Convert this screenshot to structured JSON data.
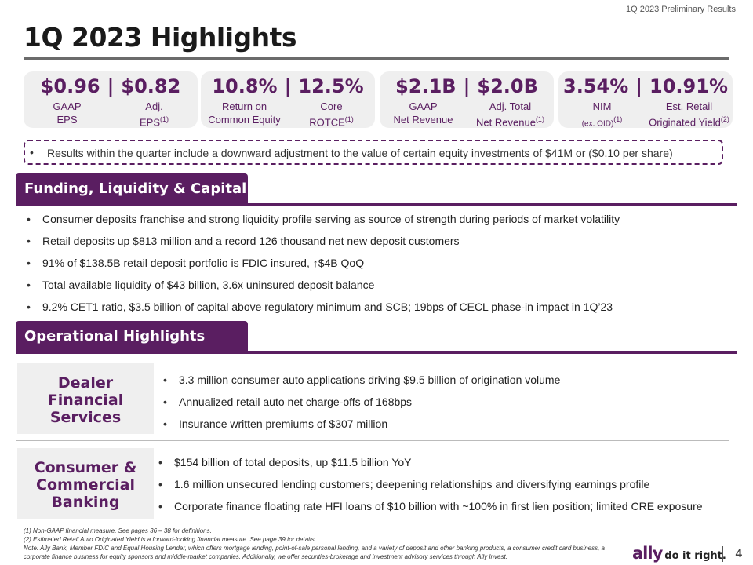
{
  "header": {
    "top_right": "1Q 2023 Preliminary Results",
    "title": "1Q 2023 Highlights"
  },
  "metrics": [
    {
      "v1": "$0.96",
      "v2": "$0.82",
      "l1a": "GAAP",
      "l1b": "EPS",
      "l2a": "Adj.",
      "l2b": "EPS",
      "l2sup": "(1)"
    },
    {
      "v1": "10.8%",
      "v2": "12.5%",
      "l1a": "Return on",
      "l1b": "Common Equity",
      "l2a": "Core",
      "l2b": "ROTCE",
      "l2sup": "(1)"
    },
    {
      "v1": "$2.1B",
      "v2": "$2.0B",
      "l1a": "GAAP",
      "l1b": "Net Revenue",
      "l2a": "Adj. Total",
      "l2b": "Net Revenue",
      "l2sup": "(1)"
    },
    {
      "v1": "3.54%",
      "v2": "10.91%",
      "l1a": "NIM",
      "l1b": "(ex. OID)",
      "l1sup": "(1)",
      "l2a": "Est. Retail",
      "l2b": "Originated Yield",
      "l2sup": "(2)"
    }
  ],
  "separator": "|",
  "note": "Results within the quarter include a downward adjustment to the value of certain equity investments of $41M or ($0.10 per share)",
  "funding": {
    "heading": "Funding, Liquidity & Capital",
    "bullets": [
      "Consumer deposits franchise and strong liquidity profile serving as source of strength during periods of market volatility",
      "Retail deposits up $813 million and a record 126 thousand net new deposit customers",
      "91% of $138.5B retail deposit portfolio is FDIC insured, ↑$4B QoQ",
      "Total available liquidity of $43 billion, 3.6x uninsured deposit balance",
      "9.2% CET1 ratio, $3.5 billion of capital above regulatory minimum and SCB; 19bps of CECL phase-in impact in 1Q’23"
    ]
  },
  "operational": {
    "heading": "Operational Highlights",
    "groups": [
      {
        "label_lines": [
          "Dealer",
          "Financial",
          "Services"
        ],
        "bullets": [
          "3.3 million consumer auto applications driving $9.5 billion of origination volume",
          "Annualized retail auto net charge-offs of 168bps",
          "Insurance written premiums of $307 million"
        ]
      },
      {
        "label_lines": [
          "Consumer &",
          "Commercial",
          "Banking"
        ],
        "bullets": [
          "$154 billion of total deposits, up $11.5 billion YoY",
          "1.6 million unsecured lending customers; deepening relationships and diversifying earnings profile",
          "Corporate finance floating rate HFI loans of $10 billion with ~100% in first lien position; limited CRE exposure"
        ]
      }
    ]
  },
  "footnotes": [
    "(1) Non-GAAP financial measure. See pages 36 – 38  for definitions.",
    "(2) Estimated Retail Auto Originated Yield is a forward-looking financial measure. See page 39 for details.",
    "Note: Ally Bank, Member FDIC and Equal Housing Lender, which offers mortgage lending, point-of-sale personal lending, and a variety of deposit and other banking products, a consumer credit card business, a",
    "corporate finance business for equity sponsors and middle-market companies. Additionally, we offer securities-brokerage and investment advisory services through Ally Invest."
  ],
  "logo": {
    "word": "ally",
    "tagline": "do it right."
  },
  "page_number": "4",
  "colors": {
    "accent": "#5a1e61",
    "card_bg": "#efefef"
  }
}
